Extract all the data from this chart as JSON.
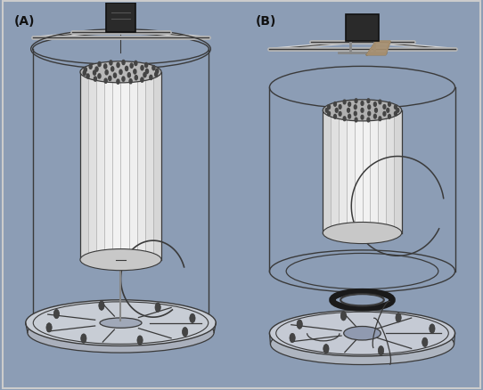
{
  "figsize": [
    5.42,
    4.39
  ],
  "dpi": 100,
  "bg_color": "#8c9db5",
  "panel_bg": "#8c9db5",
  "outline_color": "#3a3a3a",
  "light_gray": "#d8d8d8",
  "mid_gray": "#b8b8b8",
  "dark_gray": "#555555",
  "white_part": "#e8e8e8",
  "border_color": "#c0c0c0",
  "panel_A_label": "(A)",
  "panel_B_label": "(B)",
  "label_fontsize": 10,
  "label_color": "#111111"
}
